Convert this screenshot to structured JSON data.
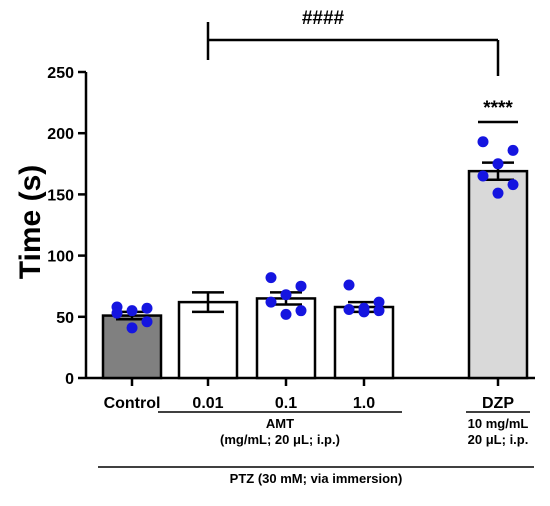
{
  "chart_data": {
    "type": "bar",
    "ylabel": "Time (s)",
    "ylim": [
      0,
      250
    ],
    "yticks": [
      0,
      50,
      100,
      150,
      200,
      250
    ],
    "categories": [
      "Control",
      "0.01",
      "0.1",
      "1.0",
      "DZP"
    ],
    "values": [
      51,
      62,
      65,
      58,
      169
    ],
    "sem": [
      3,
      8,
      5,
      4,
      7
    ],
    "bar_colors": [
      "#808080",
      "#ffffff",
      "#ffffff",
      "#ffffff",
      "#d9d9d9"
    ],
    "point_color": "#1515e0",
    "points": [
      [
        58,
        57,
        55,
        53,
        46,
        41
      ],
      [],
      [
        82,
        75,
        68,
        62,
        55,
        52
      ],
      [
        76,
        62,
        57,
        56,
        55,
        54
      ],
      [
        193,
        186,
        175,
        165,
        158,
        151
      ]
    ],
    "group_labels": [
      {
        "lines": [
          "AMT",
          "(mg/mL; 20 μL; i.p.)"
        ],
        "span": [
          1,
          3
        ]
      },
      {
        "lines": [
          "10 mg/mL",
          "20 μL; i.p."
        ],
        "span": [
          4,
          4
        ]
      },
      {
        "lines": [
          "PTZ (30 mM; via immersion)"
        ],
        "span": [
          0,
          4
        ]
      }
    ],
    "annotations": [
      {
        "text": "####",
        "from": 1,
        "to": 4
      },
      {
        "text": "****",
        "over": 4
      }
    ]
  }
}
